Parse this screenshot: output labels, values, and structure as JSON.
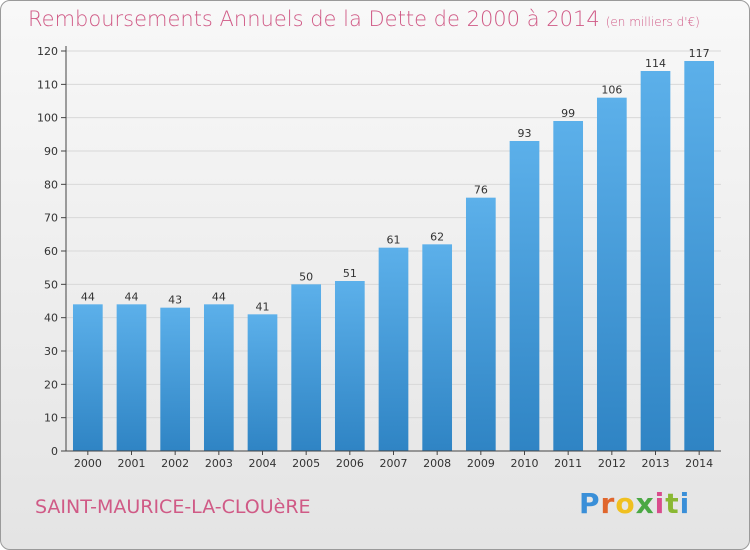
{
  "title": "Remboursements Annuels de la Dette de 2000 à 2014",
  "subtitle": "(en milliers d'€)",
  "town": "SAINT-MAURICE-LA-CLOUèRE",
  "logo": {
    "text": "Proxiti",
    "letter_colors": [
      "#3a8fd8",
      "#e0662c",
      "#f0c020",
      "#4aa844",
      "#d94c8c",
      "#8ab833",
      "#3a8fd8"
    ]
  },
  "colors": {
    "bar_top": "#5cb0ea",
    "bar_bottom": "#2f84c4",
    "text": "#d05a86",
    "axis": "#444444",
    "grid": "#d8d8d8"
  },
  "chart_data": {
    "type": "bar",
    "title": "Remboursements Annuels de la Dette de 2000 à 2014",
    "subtitle": "(en milliers d'€)",
    "xlabel": "",
    "ylabel": "",
    "categories": [
      "2000",
      "2001",
      "2002",
      "2003",
      "2004",
      "2005",
      "2006",
      "2007",
      "2008",
      "2009",
      "2010",
      "2011",
      "2012",
      "2013",
      "2014"
    ],
    "values": [
      44,
      44,
      43,
      44,
      41,
      50,
      51,
      61,
      62,
      76,
      93,
      99,
      106,
      114,
      117
    ],
    "ylim": [
      0,
      120
    ],
    "yticks": [
      0,
      10,
      20,
      30,
      40,
      50,
      60,
      70,
      80,
      90,
      100,
      110,
      120
    ],
    "grid": true,
    "data_labels": true
  }
}
